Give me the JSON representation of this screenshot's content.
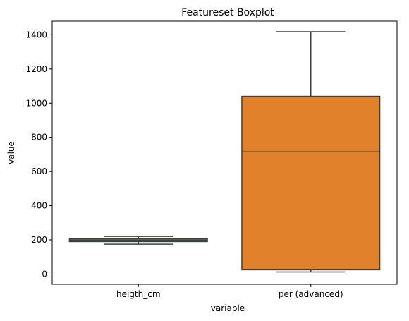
{
  "chart_data": {
    "type": "boxplot",
    "title": "Featureset Boxplot",
    "xlabel": "variable",
    "ylabel": "value",
    "ylim": [
      -60,
      1480
    ],
    "yticks": [
      0,
      200,
      400,
      600,
      800,
      1000,
      1200,
      1400
    ],
    "grid": false,
    "categories": [
      "heigth_cm",
      "per (advanced)"
    ],
    "boxes": [
      {
        "category": "heigth_cm",
        "whisker_low": 175,
        "q1": 190,
        "median": 198,
        "q3": 207,
        "whisker_high": 220,
        "color": "#3274a1"
      },
      {
        "category": "per (advanced)",
        "whisker_low": 12,
        "q1": 25,
        "median": 715,
        "q3": 1040,
        "whisker_high": 1418,
        "color": "#e1812c"
      }
    ]
  }
}
